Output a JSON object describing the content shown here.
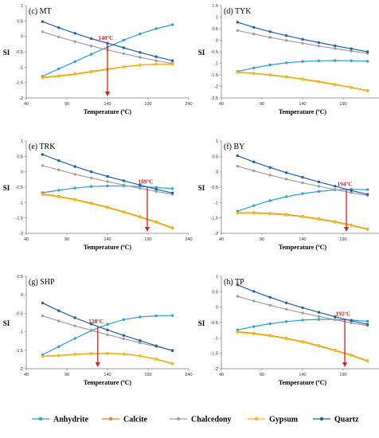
{
  "colors": {
    "Anhydrite": "#2aa3d6",
    "Calcite": "#ef7f24",
    "Chalcedony": "#9f9f9f",
    "Gypsum": "#f4c20d",
    "Quartz": "#1f5fa8",
    "annotation": "#e41b1b"
  },
  "legend": [
    "Anhydrite",
    "Calcite",
    "Chalcedony",
    "Gypsum",
    "Quartz"
  ],
  "chart_data": [
    {
      "type": "line",
      "panel_label": "(c) MT",
      "xlabel": "Temperature (ºC)",
      "ylabel": "SI",
      "xlim": [
        40,
        240
      ],
      "ylim": [
        -2,
        1
      ],
      "xticks": [
        "40",
        "90",
        "140",
        "190",
        "240"
      ],
      "yticks": [
        "1",
        "0.5",
        "0",
        "-0.5",
        "-1",
        "-1.5",
        "-2"
      ],
      "x": [
        60,
        80,
        100,
        120,
        140,
        160,
        180,
        200,
        220
      ],
      "series": [
        {
          "name": "Anhydrite",
          "values": [
            -1.3,
            -1.05,
            -0.82,
            -0.58,
            -0.35,
            -0.12,
            0.08,
            0.25,
            0.38
          ]
        },
        {
          "name": "Calcite",
          "values": [
            -1.33,
            -1.28,
            -1.22,
            -1.14,
            -1.06,
            -0.99,
            -0.93,
            -0.9,
            -0.9
          ]
        },
        {
          "name": "Chalcedony",
          "values": [
            0.15,
            -0.02,
            -0.17,
            -0.31,
            -0.44,
            -0.56,
            -0.68,
            -0.79,
            -0.88
          ]
        },
        {
          "name": "Gypsum",
          "values": [
            -1.35,
            -1.3,
            -1.24,
            -1.16,
            -1.08,
            -1.0,
            -0.94,
            -0.91,
            -0.91
          ]
        },
        {
          "name": "Quartz",
          "values": [
            0.48,
            0.28,
            0.1,
            -0.07,
            -0.22,
            -0.37,
            -0.52,
            -0.66,
            -0.79
          ]
        }
      ],
      "annotation": {
        "text": "140ºC",
        "x": 140
      }
    },
    {
      "type": "line",
      "panel_label": "(d) TYK",
      "xlabel": "Temperature (ºC)",
      "ylabel": "SI",
      "xlim": [
        40,
        240
      ],
      "ylim": [
        -2.5,
        1.5
      ],
      "xticks": [
        "40",
        "90",
        "140",
        "190",
        "240"
      ],
      "yticks": [
        "1.5",
        "1",
        "0.5",
        "0",
        "-0.5",
        "-1",
        "-1.5",
        "-2",
        "-2.5"
      ],
      "x": [
        60,
        80,
        100,
        120,
        140,
        160,
        180,
        200,
        220
      ],
      "series": [
        {
          "name": "Anhydrite",
          "values": [
            -1.35,
            -1.2,
            -1.07,
            -0.98,
            -0.92,
            -0.89,
            -0.88,
            -0.89,
            -0.91
          ]
        },
        {
          "name": "Calcite",
          "values": [
            -1.38,
            -1.43,
            -1.5,
            -1.58,
            -1.68,
            -1.79,
            -1.91,
            -2.04,
            -2.18
          ]
        },
        {
          "name": "Chalcedony",
          "values": [
            0.42,
            0.27,
            0.12,
            -0.01,
            -0.13,
            -0.25,
            -0.36,
            -0.47,
            -0.57
          ]
        },
        {
          "name": "Gypsum",
          "values": [
            -1.4,
            -1.45,
            -1.52,
            -1.6,
            -1.7,
            -1.81,
            -1.93,
            -2.06,
            -2.2
          ]
        },
        {
          "name": "Quartz",
          "values": [
            0.78,
            0.56,
            0.37,
            0.2,
            0.04,
            -0.1,
            -0.24,
            -0.37,
            -0.5
          ]
        }
      ]
    },
    {
      "type": "line",
      "panel_label": "(e) TRK",
      "xlabel": "Temperature (ºC)",
      "ylabel": "SI",
      "xlim": [
        40,
        240
      ],
      "ylim": [
        -2,
        1
      ],
      "xticks": [
        "40",
        "90",
        "140",
        "190",
        "240"
      ],
      "yticks": [
        "1",
        "0.5",
        "0",
        "-0.5",
        "-1",
        "-1.5",
        "-2"
      ],
      "x": [
        60,
        80,
        100,
        120,
        140,
        160,
        180,
        200,
        220
      ],
      "series": [
        {
          "name": "Anhydrite",
          "values": [
            -0.68,
            -0.6,
            -0.53,
            -0.48,
            -0.46,
            -0.46,
            -0.48,
            -0.51,
            -0.55
          ]
        },
        {
          "name": "Calcite",
          "values": [
            -0.72,
            -0.8,
            -0.9,
            -1.02,
            -1.15,
            -1.3,
            -1.46,
            -1.63,
            -1.82
          ]
        },
        {
          "name": "Chalcedony",
          "values": [
            0.2,
            0.06,
            -0.08,
            -0.2,
            -0.32,
            -0.43,
            -0.54,
            -0.64,
            -0.73
          ]
        },
        {
          "name": "Gypsum",
          "values": [
            -0.74,
            -0.82,
            -0.92,
            -1.04,
            -1.17,
            -1.32,
            -1.48,
            -1.65,
            -1.84
          ]
        },
        {
          "name": "Quartz",
          "values": [
            0.56,
            0.36,
            0.17,
            0.0,
            -0.15,
            -0.29,
            -0.43,
            -0.57,
            -0.69
          ]
        }
      ],
      "annotation": {
        "text": "189ºC",
        "x": 189
      }
    },
    {
      "type": "line",
      "panel_label": "(f) BY",
      "xlabel": "Temperature (ºC)",
      "ylabel": "SI",
      "xlim": [
        40,
        240
      ],
      "ylim": [
        -2,
        1
      ],
      "xticks": [
        "40",
        "90",
        "140",
        "190",
        "240"
      ],
      "yticks": [
        "1",
        "0.5",
        "0",
        "-0.5",
        "-1",
        "-1.5",
        "-2"
      ],
      "x": [
        60,
        80,
        100,
        120,
        140,
        160,
        180,
        200,
        220
      ],
      "series": [
        {
          "name": "Anhydrite",
          "values": [
            -1.28,
            -1.1,
            -0.94,
            -0.81,
            -0.71,
            -0.64,
            -0.59,
            -0.57,
            -0.58
          ]
        },
        {
          "name": "Calcite",
          "values": [
            -1.33,
            -1.33,
            -1.35,
            -1.39,
            -1.45,
            -1.53,
            -1.62,
            -1.73,
            -1.86
          ]
        },
        {
          "name": "Chalcedony",
          "values": [
            0.18,
            0.03,
            -0.11,
            -0.24,
            -0.36,
            -0.47,
            -0.58,
            -0.68,
            -0.77
          ]
        },
        {
          "name": "Gypsum",
          "values": [
            -1.35,
            -1.35,
            -1.37,
            -1.41,
            -1.47,
            -1.55,
            -1.64,
            -1.75,
            -1.88
          ]
        },
        {
          "name": "Quartz",
          "values": [
            0.52,
            0.32,
            0.14,
            -0.03,
            -0.18,
            -0.33,
            -0.47,
            -0.61,
            -0.73
          ]
        }
      ],
      "annotation": {
        "text": "194ºC",
        "x": 194
      }
    },
    {
      "type": "line",
      "panel_label": "(g) SHP",
      "xlabel": "Temperature (ºC)",
      "ylabel": "SI",
      "xlim": [
        40,
        240
      ],
      "ylim": [
        -2,
        0.5
      ],
      "xticks": [
        "40",
        "90",
        "140",
        "190",
        "240"
      ],
      "yticks": [
        "0.5",
        "0",
        "-0.5",
        "-1",
        "-1.5",
        "-2"
      ],
      "x": [
        60,
        80,
        100,
        120,
        140,
        160,
        180,
        200,
        220
      ],
      "series": [
        {
          "name": "Anhydrite",
          "values": [
            -1.62,
            -1.4,
            -1.18,
            -0.97,
            -0.8,
            -0.67,
            -0.6,
            -0.57,
            -0.56
          ]
        },
        {
          "name": "Calcite",
          "values": [
            -1.66,
            -1.64,
            -1.61,
            -1.59,
            -1.58,
            -1.6,
            -1.65,
            -1.74,
            -1.86
          ]
        },
        {
          "name": "Chalcedony",
          "values": [
            -0.57,
            -0.71,
            -0.84,
            -0.96,
            -1.08,
            -1.19,
            -1.3,
            -1.4,
            -1.5
          ]
        },
        {
          "name": "Gypsum",
          "values": [
            -1.67,
            -1.65,
            -1.62,
            -1.6,
            -1.59,
            -1.61,
            -1.66,
            -1.75,
            -1.87
          ]
        },
        {
          "name": "Quartz",
          "values": [
            -0.22,
            -0.43,
            -0.62,
            -0.79,
            -0.95,
            -1.1,
            -1.24,
            -1.38,
            -1.51
          ]
        }
      ],
      "annotation": {
        "text": "128ºC",
        "x": 128
      }
    },
    {
      "type": "line",
      "panel_label": "(h) TP",
      "xlabel": "Temperature (ºC)",
      "ylabel": "SI",
      "xlim": [
        40,
        240
      ],
      "ylim": [
        -2,
        1
      ],
      "xticks": [
        "40",
        "90",
        "140",
        "190",
        "240"
      ],
      "yticks": [
        "1",
        "0.5",
        "0",
        "-0.5",
        "-1",
        "-1.5",
        "-2"
      ],
      "x": [
        60,
        80,
        100,
        120,
        140,
        160,
        180,
        200,
        220
      ],
      "series": [
        {
          "name": "Anhydrite",
          "values": [
            -0.74,
            -0.63,
            -0.54,
            -0.47,
            -0.42,
            -0.4,
            -0.4,
            -0.42,
            -0.46
          ]
        },
        {
          "name": "Calcite",
          "values": [
            -0.8,
            -0.85,
            -0.92,
            -1.01,
            -1.12,
            -1.25,
            -1.4,
            -1.56,
            -1.74
          ]
        },
        {
          "name": "Chalcedony",
          "values": [
            0.35,
            0.2,
            0.06,
            -0.07,
            -0.19,
            -0.3,
            -0.41,
            -0.51,
            -0.6
          ]
        },
        {
          "name": "Gypsum",
          "values": [
            -0.82,
            -0.87,
            -0.94,
            -1.03,
            -1.14,
            -1.27,
            -1.42,
            -1.58,
            -1.76
          ]
        },
        {
          "name": "Quartz",
          "values": [
            0.72,
            0.51,
            0.32,
            0.14,
            -0.02,
            -0.17,
            -0.31,
            -0.44,
            -0.56
          ]
        }
      ],
      "annotation": {
        "text": "192ºC",
        "x": 192
      }
    }
  ]
}
